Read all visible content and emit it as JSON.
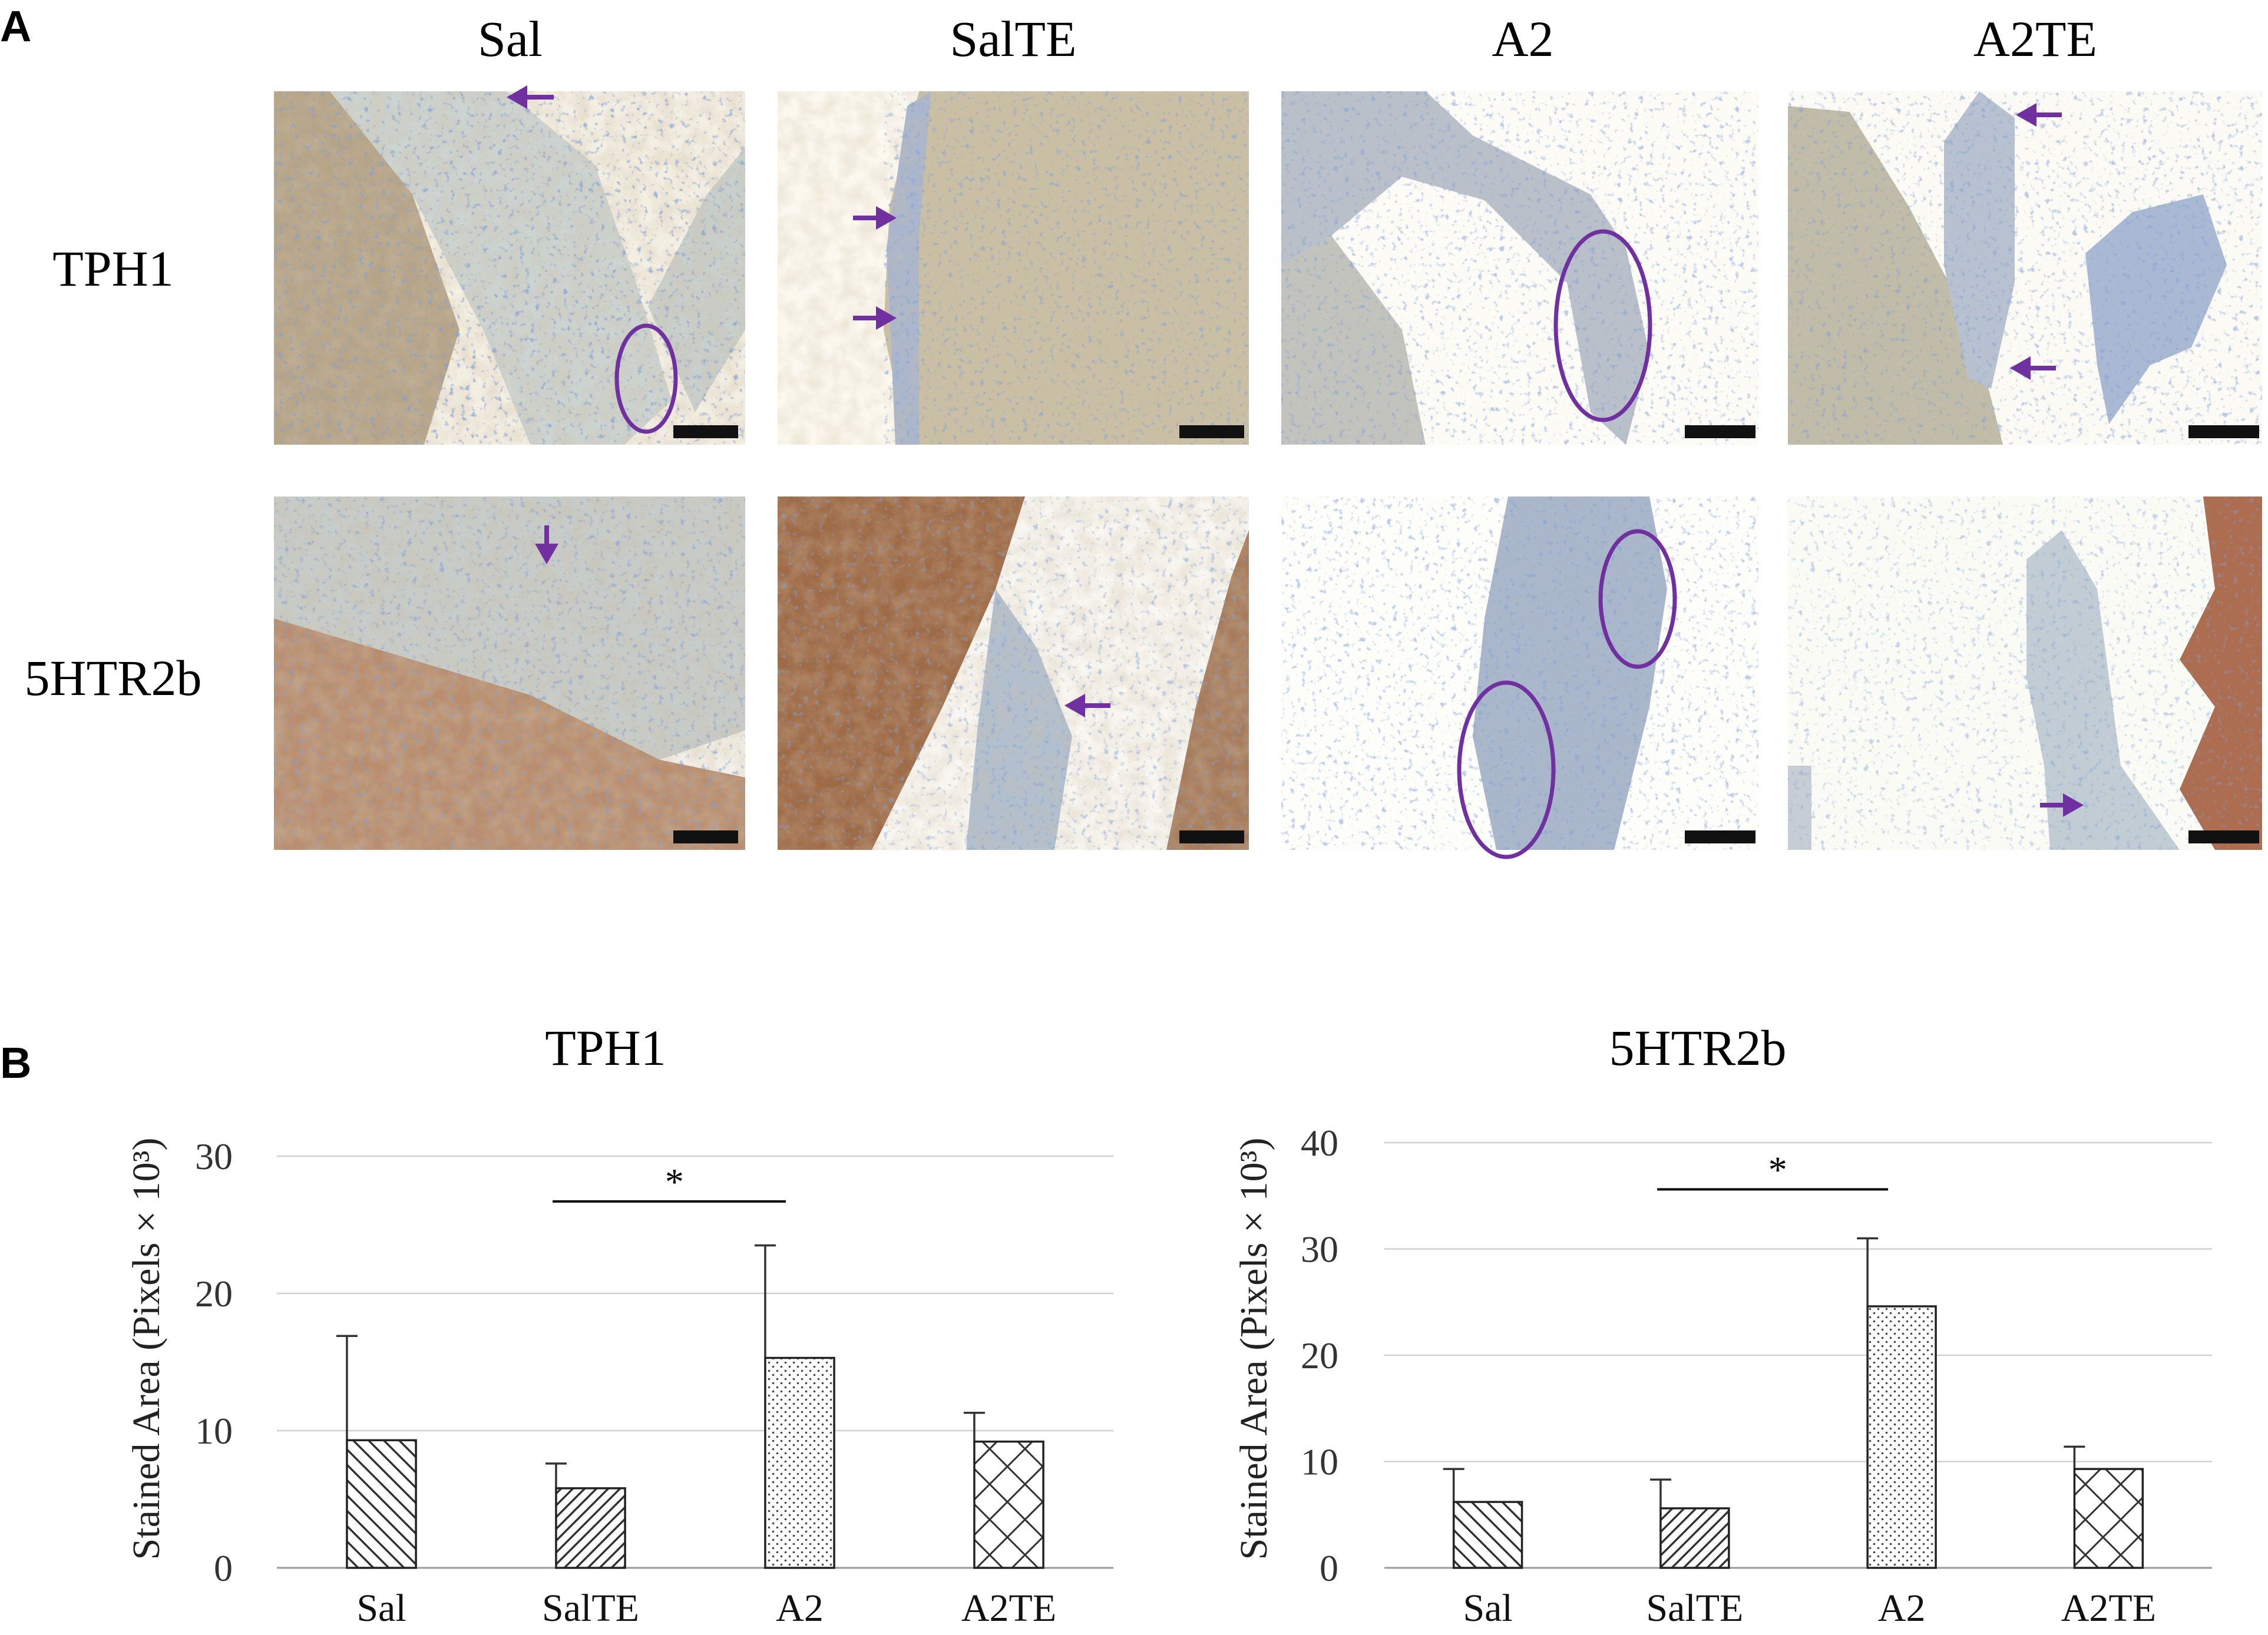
{
  "panel_labels": {
    "a": "A",
    "b": "B"
  },
  "micrographs": {
    "column_headers": [
      "Sal",
      "SalTE",
      "A2",
      "A2TE"
    ],
    "row_labels": [
      "TPH1",
      "5HTR2b"
    ],
    "annotation_color": "#7030a0",
    "stain_colors": {
      "hematoxylin": "#3d5f9e",
      "dab_brown": "#a0623d",
      "background": "#f5f1e6"
    }
  },
  "chart_data": [
    {
      "type": "bar",
      "title": "TPH1",
      "ylabel": "Stained Area (Pixels × 10³)",
      "xlabel": "",
      "categories": [
        "Sal",
        "SalTE",
        "A2",
        "A2TE"
      ],
      "values": [
        9.3,
        5.8,
        15.3,
        9.2
      ],
      "error_upper": [
        16.9,
        7.6,
        23.5,
        11.3
      ],
      "patterns": [
        "back-diagonal",
        "forward-diagonal",
        "dots",
        "diagonal-cross"
      ],
      "ylim": [
        0,
        30
      ],
      "yticks": [
        "0",
        "10",
        "20",
        "30"
      ],
      "grid": true,
      "significance": {
        "from": "SalTE",
        "to": "A2",
        "label": "*"
      }
    },
    {
      "type": "bar",
      "title": "5HTR2b",
      "ylabel": "Stained Area (Pixels × 10³)",
      "xlabel": "",
      "categories": [
        "Sal",
        "SalTE",
        "A2",
        "A2TE"
      ],
      "values": [
        6.2,
        5.6,
        24.6,
        9.3
      ],
      "error_upper": [
        9.3,
        8.3,
        31.0,
        11.4
      ],
      "patterns": [
        "back-diagonal",
        "forward-diagonal",
        "dots",
        "diagonal-cross"
      ],
      "ylim": [
        0,
        40
      ],
      "yticks": [
        "0",
        "10",
        "20",
        "30",
        "40"
      ],
      "grid": true,
      "significance": {
        "from": "SalTE",
        "to": "A2",
        "label": "*"
      }
    }
  ]
}
